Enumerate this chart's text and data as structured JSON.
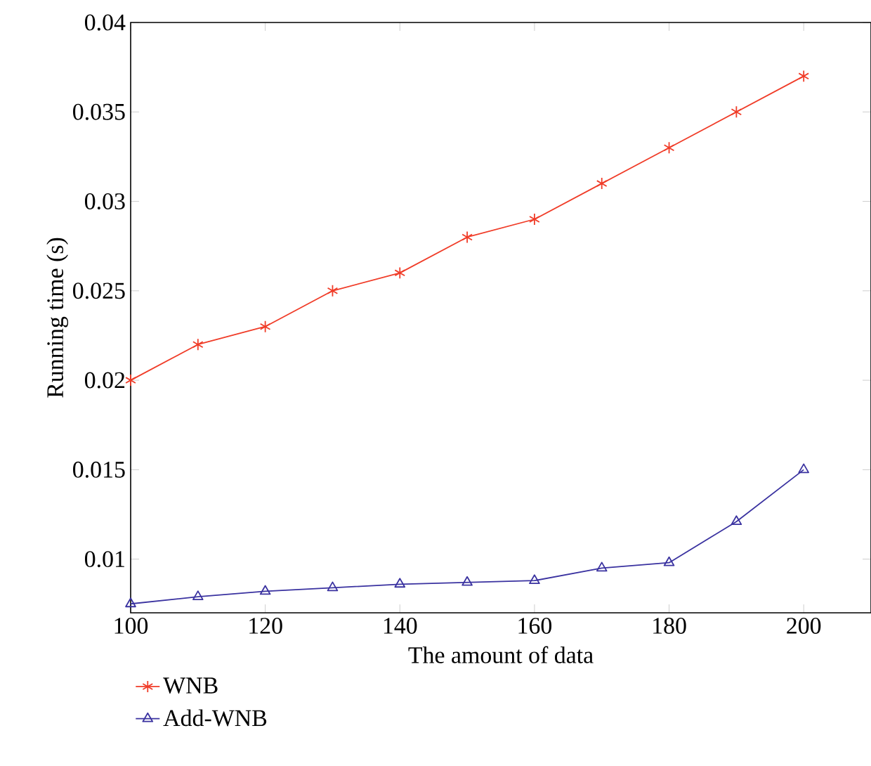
{
  "chart_data": {
    "type": "line",
    "xlabel": "The amount of data",
    "ylabel": "Running time (s)",
    "x": [
      100,
      110,
      120,
      130,
      140,
      150,
      160,
      170,
      180,
      190,
      200
    ],
    "series": [
      {
        "name": "WNB",
        "color": "#f03c28",
        "marker": "cross",
        "values": [
          0.02,
          0.022,
          0.023,
          0.025,
          0.026,
          0.028,
          0.029,
          0.031,
          0.033,
          0.035,
          0.037
        ]
      },
      {
        "name": "Add-WNB",
        "color": "#3a32a0",
        "marker": "triangle",
        "values": [
          0.0075,
          0.0079,
          0.0082,
          0.0084,
          0.0086,
          0.0087,
          0.0088,
          0.0095,
          0.0098,
          0.0121,
          0.015
        ]
      }
    ],
    "xlim": [
      100,
      210
    ],
    "ylim": [
      0.007,
      0.04
    ],
    "xticks": [
      100,
      120,
      140,
      160,
      180,
      200
    ],
    "yticks": [
      0.01,
      0.015,
      0.02,
      0.025,
      0.03,
      0.035,
      0.04
    ],
    "grid": false,
    "legend": "bottom left",
    "line_style": "solid"
  }
}
